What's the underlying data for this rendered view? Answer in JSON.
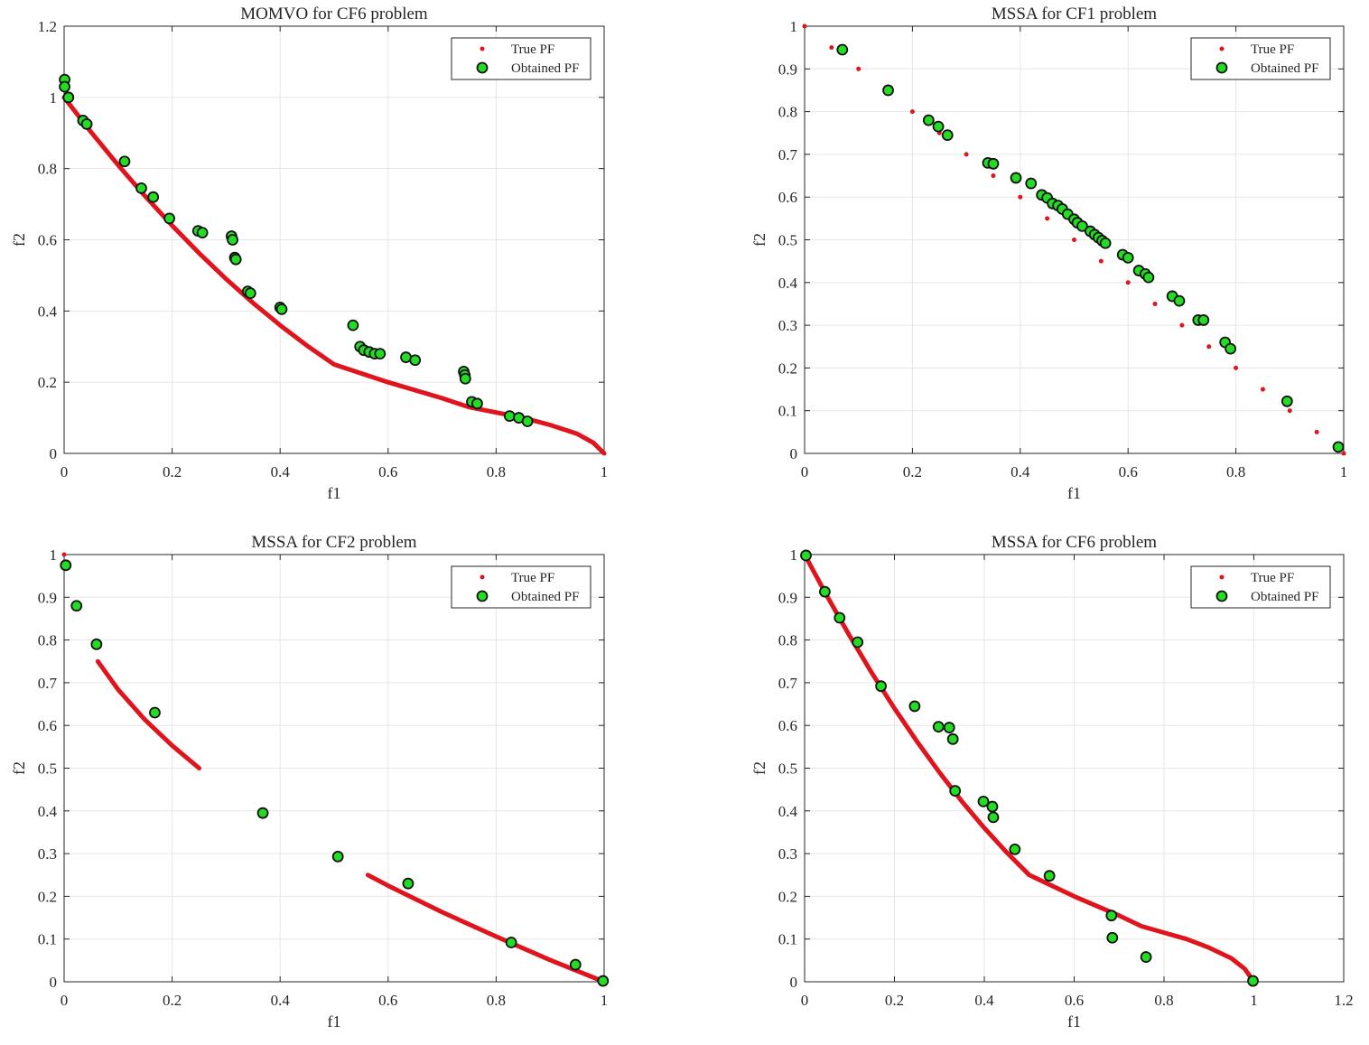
{
  "colors": {
    "true_pf": "#e0141c",
    "obtained_fill": "#22dd22",
    "obtained_edge": "#111111",
    "grid": "#e6e6e6",
    "axis": "#262626"
  },
  "chart_data": [
    {
      "type": "scatter",
      "title": "MOMVO for CF6 problem",
      "xlabel": "f1",
      "ylabel": "f2",
      "xlim": [
        0,
        1
      ],
      "ylim": [
        0,
        1.2
      ],
      "xticks": [
        0,
        0.2,
        0.4,
        0.6,
        0.8,
        1
      ],
      "yticks": [
        0,
        0.2,
        0.4,
        0.6,
        0.8,
        1,
        1.2
      ],
      "xtick_labels": [
        "0",
        "0.2",
        "0.4",
        "0.6",
        "0.8",
        "1"
      ],
      "ytick_labels": [
        "0",
        "0.2",
        "0.4",
        "0.6",
        "0.8",
        "1",
        "1.2"
      ],
      "legend": {
        "position": "top-right",
        "entries": [
          "True PF",
          "Obtained PF"
        ]
      },
      "series": [
        {
          "name": "True PF",
          "style": "line",
          "segments": [
            [
              [
                0,
                1
              ],
              [
                0.05,
                0.9025
              ],
              [
                0.1,
                0.81
              ],
              [
                0.15,
                0.7225
              ],
              [
                0.2,
                0.64
              ],
              [
                0.25,
                0.5625
              ],
              [
                0.3,
                0.49
              ],
              [
                0.35,
                0.4225
              ],
              [
                0.4,
                0.36
              ],
              [
                0.45,
                0.3025
              ],
              [
                0.5,
                0.25
              ],
              [
                0.6,
                0.2
              ],
              [
                0.7,
                0.155
              ],
              [
                0.75,
                0.13
              ],
              [
                0.8,
                0.115
              ],
              [
                0.85,
                0.1
              ],
              [
                0.9,
                0.08
              ],
              [
                0.95,
                0.055
              ],
              [
                0.98,
                0.03
              ],
              [
                1,
                0
              ]
            ]
          ]
        },
        {
          "name": "Obtained PF",
          "style": "marker",
          "points": [
            [
              0.001,
              1.05
            ],
            [
              0.001,
              1.03
            ],
            [
              0.008,
              1.0
            ],
            [
              0.035,
              0.935
            ],
            [
              0.042,
              0.925
            ],
            [
              0.112,
              0.82
            ],
            [
              0.143,
              0.745
            ],
            [
              0.165,
              0.72
            ],
            [
              0.195,
              0.66
            ],
            [
              0.248,
              0.625
            ],
            [
              0.256,
              0.62
            ],
            [
              0.31,
              0.61
            ],
            [
              0.312,
              0.6
            ],
            [
              0.316,
              0.55
            ],
            [
              0.318,
              0.545
            ],
            [
              0.34,
              0.455
            ],
            [
              0.345,
              0.45
            ],
            [
              0.4,
              0.41
            ],
            [
              0.403,
              0.405
            ],
            [
              0.535,
              0.36
            ],
            [
              0.548,
              0.3
            ],
            [
              0.555,
              0.29
            ],
            [
              0.565,
              0.285
            ],
            [
              0.575,
              0.28
            ],
            [
              0.585,
              0.28
            ],
            [
              0.633,
              0.27
            ],
            [
              0.65,
              0.262
            ],
            [
              0.74,
              0.23
            ],
            [
              0.742,
              0.22
            ],
            [
              0.743,
              0.21
            ],
            [
              0.755,
              0.145
            ],
            [
              0.765,
              0.14
            ],
            [
              0.825,
              0.105
            ],
            [
              0.842,
              0.1
            ],
            [
              0.858,
              0.09
            ]
          ]
        }
      ]
    },
    {
      "type": "scatter",
      "title": "MSSA for CF1 problem",
      "xlabel": "f1",
      "ylabel": "f2",
      "xlim": [
        0,
        1
      ],
      "ylim": [
        0,
        1
      ],
      "xticks": [
        0,
        0.2,
        0.4,
        0.6,
        0.8,
        1
      ],
      "yticks": [
        0,
        0.1,
        0.2,
        0.3,
        0.4,
        0.5,
        0.6,
        0.7,
        0.8,
        0.9,
        1
      ],
      "xtick_labels": [
        "0",
        "0.2",
        "0.4",
        "0.6",
        "0.8",
        "1"
      ],
      "ytick_labels": [
        "0",
        "0.1",
        "0.2",
        "0.3",
        "0.4",
        "0.5",
        "0.6",
        "0.7",
        "0.8",
        "0.9",
        "1"
      ],
      "legend": {
        "position": "top-right",
        "entries": [
          "True PF",
          "Obtained PF"
        ]
      },
      "series": [
        {
          "name": "True PF",
          "style": "dots",
          "points": [
            [
              0,
              1
            ],
            [
              0.05,
              0.95
            ],
            [
              0.1,
              0.9
            ],
            [
              0.15,
              0.85
            ],
            [
              0.2,
              0.8
            ],
            [
              0.25,
              0.75
            ],
            [
              0.3,
              0.7
            ],
            [
              0.35,
              0.65
            ],
            [
              0.4,
              0.6
            ],
            [
              0.45,
              0.55
            ],
            [
              0.5,
              0.5
            ],
            [
              0.55,
              0.45
            ],
            [
              0.6,
              0.4
            ],
            [
              0.65,
              0.35
            ],
            [
              0.7,
              0.3
            ],
            [
              0.75,
              0.25
            ],
            [
              0.8,
              0.2
            ],
            [
              0.85,
              0.15
            ],
            [
              0.9,
              0.1
            ],
            [
              0.95,
              0.05
            ],
            [
              1,
              0
            ]
          ]
        },
        {
          "name": "Obtained PF",
          "style": "marker",
          "points": [
            [
              0.07,
              0.945
            ],
            [
              0.155,
              0.85
            ],
            [
              0.23,
              0.78
            ],
            [
              0.248,
              0.765
            ],
            [
              0.265,
              0.745
            ],
            [
              0.34,
              0.68
            ],
            [
              0.35,
              0.678
            ],
            [
              0.392,
              0.645
            ],
            [
              0.42,
              0.632
            ],
            [
              0.44,
              0.605
            ],
            [
              0.45,
              0.598
            ],
            [
              0.46,
              0.585
            ],
            [
              0.47,
              0.58
            ],
            [
              0.478,
              0.572
            ],
            [
              0.488,
              0.56
            ],
            [
              0.5,
              0.548
            ],
            [
              0.506,
              0.54
            ],
            [
              0.515,
              0.532
            ],
            [
              0.53,
              0.52
            ],
            [
              0.538,
              0.512
            ],
            [
              0.545,
              0.505
            ],
            [
              0.552,
              0.498
            ],
            [
              0.558,
              0.492
            ],
            [
              0.59,
              0.465
            ],
            [
              0.6,
              0.458
            ],
            [
              0.62,
              0.428
            ],
            [
              0.632,
              0.42
            ],
            [
              0.638,
              0.412
            ],
            [
              0.682,
              0.368
            ],
            [
              0.695,
              0.357
            ],
            [
              0.73,
              0.312
            ],
            [
              0.74,
              0.312
            ],
            [
              0.78,
              0.26
            ],
            [
              0.79,
              0.245
            ],
            [
              0.895,
              0.122
            ],
            [
              0.99,
              0.015
            ]
          ]
        }
      ]
    },
    {
      "type": "scatter",
      "title": "MSSA for CF2 problem",
      "xlabel": "f1",
      "ylabel": "f2",
      "xlim": [
        0,
        1
      ],
      "ylim": [
        0,
        1
      ],
      "xticks": [
        0,
        0.2,
        0.4,
        0.6,
        0.8,
        1
      ],
      "yticks": [
        0,
        0.1,
        0.2,
        0.3,
        0.4,
        0.5,
        0.6,
        0.7,
        0.8,
        0.9,
        1
      ],
      "xtick_labels": [
        "0",
        "0.2",
        "0.4",
        "0.6",
        "0.8",
        "1"
      ],
      "ytick_labels": [
        "0",
        "0.1",
        "0.2",
        "0.3",
        "0.4",
        "0.5",
        "0.6",
        "0.7",
        "0.8",
        "0.9",
        "1"
      ],
      "legend": {
        "position": "top-right",
        "entries": [
          "True PF",
          "Obtained PF"
        ]
      },
      "series": [
        {
          "name": "True PF",
          "style": "line",
          "segments": [
            [
              [
                0.0625,
                0.75
              ],
              [
                0.1,
                0.684
              ],
              [
                0.15,
                0.613
              ],
              [
                0.2,
                0.553
              ],
              [
                0.25,
                0.5
              ]
            ],
            [
              [
                0.5625,
                0.25
              ],
              [
                0.6,
                0.225
              ],
              [
                0.7,
                0.163
              ],
              [
                0.8,
                0.106
              ],
              [
                0.9,
                0.051
              ],
              [
                1,
                0
              ]
            ]
          ],
          "dots": [
            [
              0,
              1
            ]
          ]
        },
        {
          "name": "Obtained PF",
          "style": "marker",
          "points": [
            [
              0.003,
              0.975
            ],
            [
              0.023,
              0.88
            ],
            [
              0.06,
              0.79
            ],
            [
              0.168,
              0.63
            ],
            [
              0.368,
              0.395
            ],
            [
              0.507,
              0.293
            ],
            [
              0.637,
              0.23
            ],
            [
              0.828,
              0.092
            ],
            [
              0.947,
              0.04
            ],
            [
              0.998,
              0.002
            ]
          ]
        }
      ]
    },
    {
      "type": "scatter",
      "title": "MSSA for CF6 problem",
      "xlabel": "f1",
      "ylabel": "f2",
      "xlim": [
        0,
        1.2
      ],
      "ylim": [
        0,
        1
      ],
      "xticks": [
        0,
        0.2,
        0.4,
        0.6,
        0.8,
        1,
        1.2
      ],
      "yticks": [
        0,
        0.1,
        0.2,
        0.3,
        0.4,
        0.5,
        0.6,
        0.7,
        0.8,
        0.9,
        1
      ],
      "xtick_labels": [
        "0",
        "0.2",
        "0.4",
        "0.6",
        "0.8",
        "1",
        "1.2"
      ],
      "ytick_labels": [
        "0",
        "0.1",
        "0.2",
        "0.3",
        "0.4",
        "0.5",
        "0.6",
        "0.7",
        "0.8",
        "0.9",
        "1"
      ],
      "legend": {
        "position": "top-right",
        "entries": [
          "True PF",
          "Obtained PF"
        ]
      },
      "series": [
        {
          "name": "True PF",
          "style": "line",
          "segments": [
            [
              [
                0,
                1
              ],
              [
                0.05,
                0.9025
              ],
              [
                0.1,
                0.81
              ],
              [
                0.15,
                0.7225
              ],
              [
                0.2,
                0.64
              ],
              [
                0.25,
                0.5625
              ],
              [
                0.3,
                0.49
              ],
              [
                0.35,
                0.4225
              ],
              [
                0.4,
                0.36
              ],
              [
                0.45,
                0.3025
              ],
              [
                0.5,
                0.25
              ],
              [
                0.6,
                0.2
              ],
              [
                0.7,
                0.155
              ],
              [
                0.75,
                0.13
              ],
              [
                0.8,
                0.115
              ],
              [
                0.85,
                0.1
              ],
              [
                0.9,
                0.08
              ],
              [
                0.95,
                0.055
              ],
              [
                0.98,
                0.03
              ],
              [
                1,
                0
              ]
            ]
          ]
        },
        {
          "name": "Obtained PF",
          "style": "marker",
          "points": [
            [
              0.003,
              0.998
            ],
            [
              0.045,
              0.913
            ],
            [
              0.078,
              0.852
            ],
            [
              0.118,
              0.795
            ],
            [
              0.17,
              0.692
            ],
            [
              0.245,
              0.645
            ],
            [
              0.298,
              0.597
            ],
            [
              0.322,
              0.595
            ],
            [
              0.33,
              0.568
            ],
            [
              0.335,
              0.447
            ],
            [
              0.398,
              0.422
            ],
            [
              0.418,
              0.41
            ],
            [
              0.42,
              0.385
            ],
            [
              0.468,
              0.31
            ],
            [
              0.545,
              0.248
            ],
            [
              0.683,
              0.155
            ],
            [
              0.685,
              0.103
            ],
            [
              0.76,
              0.058
            ],
            [
              0.998,
              0.002
            ]
          ]
        }
      ]
    }
  ]
}
